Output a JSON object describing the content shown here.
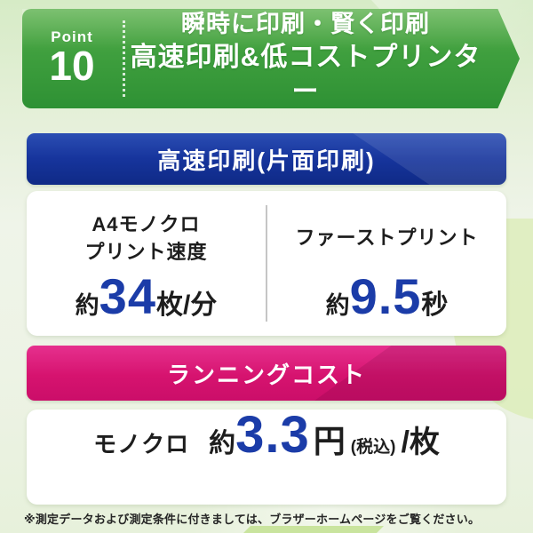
{
  "theme": {
    "background_green": "#d6ebc6",
    "banner_green": "#3f9f3e",
    "header_blue": "#16349c",
    "header_pink": "#d6136f",
    "accent_number_blue": "#1b3ca8",
    "text_dark": "#1d1d1d"
  },
  "point_banner": {
    "point_label": "Point",
    "point_number": "10",
    "headline_line1": "瞬時に印刷・賢く印刷",
    "headline_line2": "高速印刷&低コストプリンター"
  },
  "speed_section": {
    "header": "高速印刷(片面印刷)",
    "stats": [
      {
        "labels": [
          "A4モノクロ",
          "プリント速度"
        ],
        "prefix": "約",
        "value": "34",
        "unit": "枚/分"
      },
      {
        "labels": [
          "ファーストプリント"
        ],
        "prefix": "約",
        "value": "9.5",
        "unit": "秒"
      }
    ]
  },
  "cost_section": {
    "header": "ランニングコスト",
    "label": "モノクロ",
    "prefix": "約",
    "value": "3.3",
    "unit": "円",
    "tax_note": "(税込)",
    "per": "/枚"
  },
  "footnote": "※測定データおよび測定条件に付きましては、ブラザーホームページをご覧ください。"
}
